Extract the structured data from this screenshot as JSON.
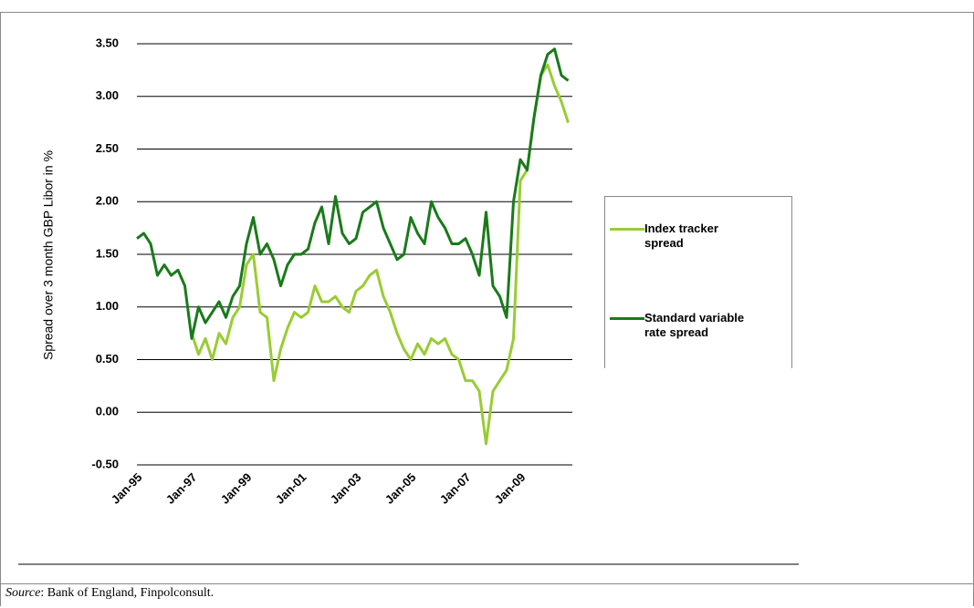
{
  "chart_data": {
    "type": "line",
    "y_label": "Spread over 3 month GBP Libor in %",
    "categories": [
      "Jan-95",
      null,
      null,
      null,
      null,
      null,
      null,
      null,
      "Jan-97",
      null,
      null,
      null,
      null,
      null,
      null,
      null,
      "Jan-99",
      null,
      null,
      null,
      null,
      null,
      null,
      null,
      "Jan-01",
      null,
      null,
      null,
      null,
      null,
      null,
      null,
      "Jan-03",
      null,
      null,
      null,
      null,
      null,
      null,
      null,
      "Jan-05",
      null,
      null,
      null,
      null,
      null,
      null,
      null,
      "Jan-07",
      null,
      null,
      null,
      null,
      null,
      null,
      null,
      "Jan-09",
      null,
      null,
      null,
      null,
      null,
      null,
      null
    ],
    "series": [
      {
        "name": "Index tracker spread",
        "color": "#99cc33",
        "values": [
          null,
          null,
          null,
          null,
          null,
          null,
          null,
          null,
          0.75,
          0.55,
          0.7,
          0.5,
          0.75,
          0.65,
          0.9,
          1.0,
          1.4,
          1.5,
          0.95,
          0.9,
          0.3,
          0.6,
          0.8,
          0.95,
          0.9,
          0.95,
          1.2,
          1.05,
          1.05,
          1.1,
          1.0,
          0.95,
          1.15,
          1.2,
          1.3,
          1.35,
          1.1,
          0.95,
          0.75,
          0.6,
          0.5,
          0.65,
          0.55,
          0.7,
          0.65,
          0.7,
          0.55,
          0.5,
          0.3,
          0.3,
          0.2,
          -0.3,
          0.2,
          0.3,
          0.4,
          0.7,
          2.2,
          2.3,
          2.8,
          3.2,
          3.3,
          3.1,
          2.95,
          2.75
        ]
      },
      {
        "name": "Standard variable rate spread",
        "color": "#1a7a1a",
        "values": [
          1.65,
          1.7,
          1.6,
          1.3,
          1.4,
          1.3,
          1.35,
          1.2,
          0.7,
          1.0,
          0.85,
          0.95,
          1.05,
          0.9,
          1.1,
          1.2,
          1.6,
          1.85,
          1.5,
          1.6,
          1.45,
          1.2,
          1.4,
          1.5,
          1.5,
          1.55,
          1.8,
          1.95,
          1.6,
          2.05,
          1.7,
          1.6,
          1.65,
          1.9,
          1.95,
          2.0,
          1.75,
          1.6,
          1.45,
          1.5,
          1.85,
          1.7,
          1.6,
          2.0,
          1.85,
          1.75,
          1.6,
          1.6,
          1.65,
          1.5,
          1.3,
          1.9,
          1.2,
          1.1,
          0.9,
          2.0,
          2.4,
          2.3,
          2.8,
          3.2,
          3.4,
          3.45,
          3.2,
          3.15
        ]
      }
    ],
    "ylim": [
      -0.5,
      3.5
    ],
    "yticks": [
      {
        "value": -0.5,
        "label": "-0.50"
      },
      {
        "value": 0,
        "label": "0.00"
      },
      {
        "value": 0.5,
        "label": "0.50"
      },
      {
        "value": 1,
        "label": "1.00"
      },
      {
        "value": 1.5,
        "label": "1.50"
      },
      {
        "value": 2,
        "label": "2.00"
      },
      {
        "value": 2.5,
        "label": "2.50"
      },
      {
        "value": 3,
        "label": "3.00"
      },
      {
        "value": 3.5,
        "label": "3.50"
      }
    ],
    "grid": true
  },
  "source": {
    "label": "Source",
    "text": ": Bank of England, Finpolconsult."
  }
}
